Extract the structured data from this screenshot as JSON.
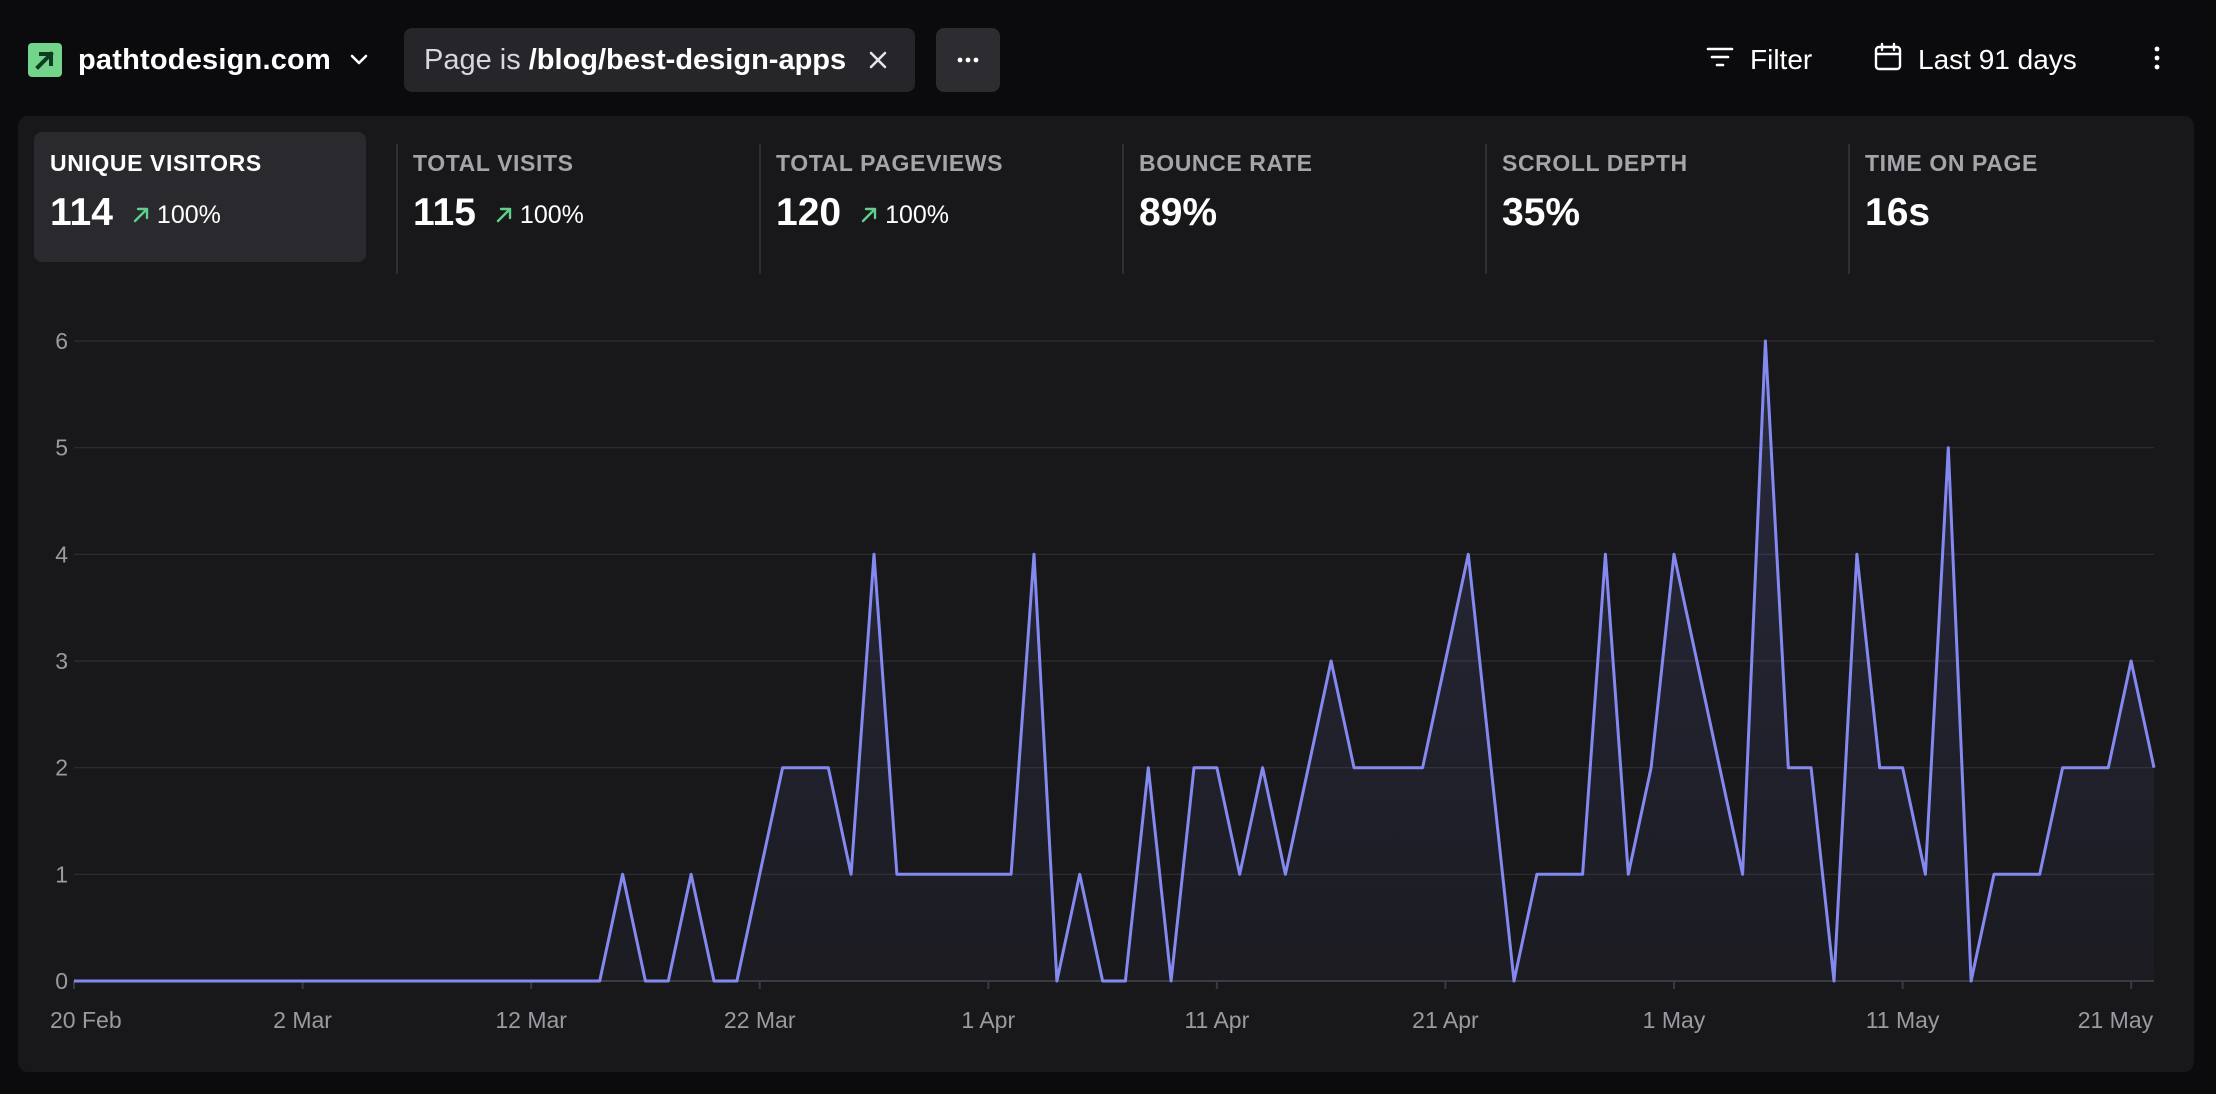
{
  "site": {
    "name": "pathtodesign.com",
    "logo_color": "#73d48b",
    "logo_icon": "arrow-up-right-icon",
    "dropdown_icon": "chevron-down-icon"
  },
  "filter_chip": {
    "prefix": "Page is",
    "value": "/blog/best-design-apps",
    "close_icon": "close-icon"
  },
  "toolbar": {
    "more_icon": "ellipsis-icon",
    "filter_label": "Filter",
    "filter_icon": "filter-icon",
    "date_range_label": "Last 91 days",
    "date_range_icon": "calendar-icon",
    "menu_icon": "kebab-menu-icon"
  },
  "stats": [
    {
      "label": "UNIQUE VISITORS",
      "value": "114",
      "change": "100%",
      "active": true
    },
    {
      "label": "TOTAL VISITS",
      "value": "115",
      "change": "100%",
      "active": false
    },
    {
      "label": "TOTAL PAGEVIEWS",
      "value": "120",
      "change": "100%",
      "active": false
    },
    {
      "label": "BOUNCE RATE",
      "value": "89%",
      "change": "",
      "active": false
    },
    {
      "label": "SCROLL DEPTH",
      "value": "35%",
      "change": "",
      "active": false
    },
    {
      "label": "TIME ON PAGE",
      "value": "16s",
      "change": "",
      "active": false
    }
  ],
  "colors": {
    "background": "#0b0b0d",
    "panel": "#18181b",
    "line": "#8489f0",
    "positive_change": "#5fd08a"
  },
  "chart_data": {
    "type": "area",
    "series": [
      {
        "values": [
          0,
          0,
          0,
          0,
          0,
          0,
          0,
          0,
          0,
          0,
          0,
          0,
          0,
          0,
          0,
          0,
          0,
          0,
          0,
          0,
          0,
          0,
          0,
          0,
          1,
          0,
          0,
          1,
          0,
          0,
          1,
          2,
          2,
          2,
          1,
          4,
          1,
          1,
          1,
          1,
          1,
          1,
          4,
          0,
          1,
          0,
          0,
          2,
          0,
          2,
          2,
          1,
          2,
          1,
          2,
          3,
          2,
          2,
          2,
          2,
          3,
          4,
          2,
          0,
          1,
          1,
          1,
          4,
          1,
          2,
          4,
          3,
          2,
          1,
          6,
          2,
          2,
          0,
          4,
          2,
          2,
          1,
          5,
          0,
          1,
          1,
          1,
          2,
          2,
          2,
          3,
          2
        ]
      }
    ],
    "x_start": "2025-02-20",
    "x_ticks": [
      "20 Feb",
      "2 Mar",
      "12 Mar",
      "22 Mar",
      "1 Apr",
      "11 Apr",
      "21 Apr",
      "1 May",
      "11 May",
      "21 May"
    ],
    "y_ticks": [
      0,
      1,
      2,
      3,
      4,
      5,
      6
    ],
    "ylim": [
      0,
      6
    ],
    "grid": true,
    "legend": "none"
  }
}
